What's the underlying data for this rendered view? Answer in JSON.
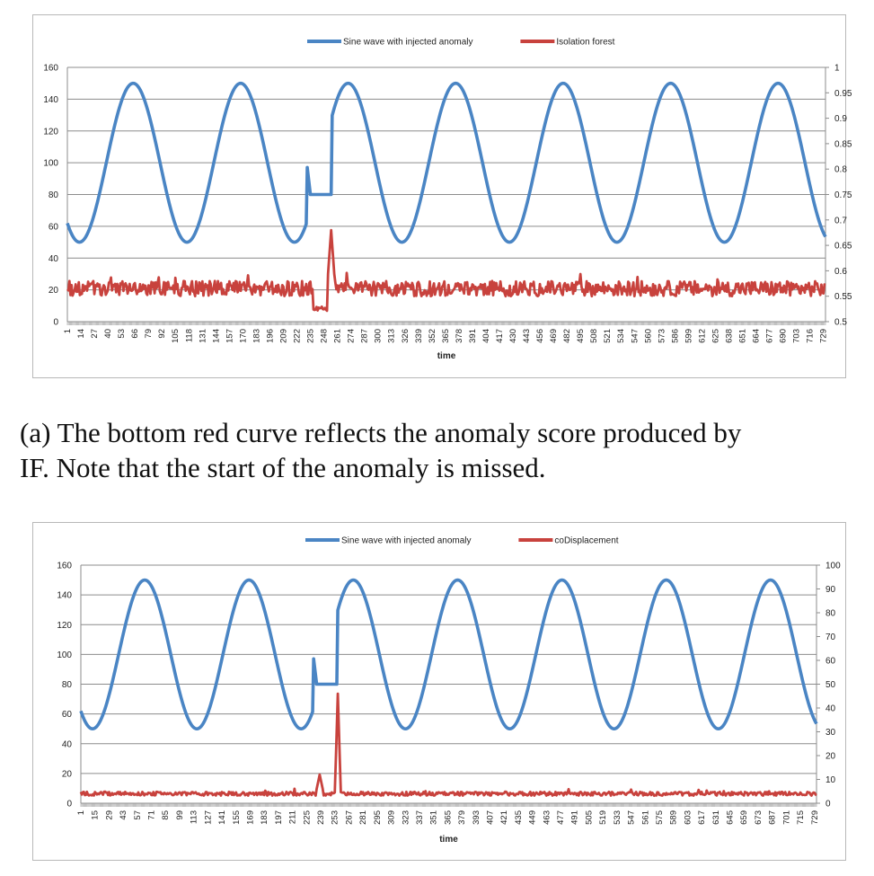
{
  "caption": {
    "line1": "(a)  The bottom red curve reflects the anomaly score produced by",
    "line2": "IF. Note that the start of the anomaly is missed."
  },
  "chart_data": [
    {
      "type": "line",
      "title": "",
      "xlabel": "time",
      "x_range": [
        1,
        731
      ],
      "x_tick_start": 1,
      "x_tick_step": 13,
      "y_left_range": [
        0,
        160
      ],
      "y_left_ticks": [
        0,
        20,
        40,
        60,
        80,
        100,
        120,
        140,
        160
      ],
      "y_right_range": [
        0.5,
        1
      ],
      "y_right_ticks": [
        "0.5",
        "0.55",
        "0.6",
        "0.65",
        "0.7",
        "0.75",
        "0.8",
        "0.85",
        "0.9",
        "0.95",
        "1"
      ],
      "grid": true,
      "legend_position": "top",
      "series": [
        {
          "name": "Sine wave with injected anomaly",
          "axis": "left",
          "color": "#4a85c4",
          "generator": "sine",
          "center": 100,
          "amplitude": 50,
          "period": 103.5,
          "phase_zero_at": 38.5,
          "anomaly": {
            "start": 235,
            "end": 256,
            "value": 80,
            "spike_at": 232,
            "spike_value": 97
          }
        },
        {
          "name": "Isolation forest",
          "axis": "right",
          "color": "#c8423d",
          "generator": "noise",
          "baseline": 0.565,
          "jitter": 0.015,
          "seed": 7,
          "dip": {
            "start": 238,
            "end": 254,
            "value": 0.525
          },
          "spike": {
            "at": 255,
            "value": 0.68,
            "width": 3
          }
        }
      ]
    },
    {
      "type": "line",
      "title": "",
      "xlabel": "time",
      "x_range": [
        1,
        731
      ],
      "x_tick_start": 1,
      "x_tick_step": 14,
      "y_left_range": [
        0,
        160
      ],
      "y_left_ticks": [
        0,
        20,
        40,
        60,
        80,
        100,
        120,
        140,
        160
      ],
      "y_right_range": [
        0,
        100
      ],
      "y_right_ticks": [
        "0",
        "10",
        "20",
        "30",
        "40",
        "50",
        "60",
        "70",
        "80",
        "90",
        "100"
      ],
      "grid": true,
      "legend_position": "top",
      "series": [
        {
          "name": "Sine wave with injected anomaly",
          "axis": "left",
          "color": "#4a85c4",
          "generator": "sine",
          "center": 100,
          "amplitude": 50,
          "period": 103.5,
          "phase_zero_at": 38.5,
          "anomaly": {
            "start": 235,
            "end": 256,
            "value": 80,
            "spike_at": 232,
            "spike_value": 97
          }
        },
        {
          "name": "coDisplacement",
          "axis": "right",
          "color": "#c8423d",
          "generator": "noise",
          "baseline": 4,
          "jitter": 0.8,
          "seed": 3,
          "bump": {
            "at": 238,
            "value": 12,
            "width": 3
          },
          "spike": {
            "at": 256,
            "value": 46,
            "width": 2
          }
        }
      ]
    }
  ]
}
